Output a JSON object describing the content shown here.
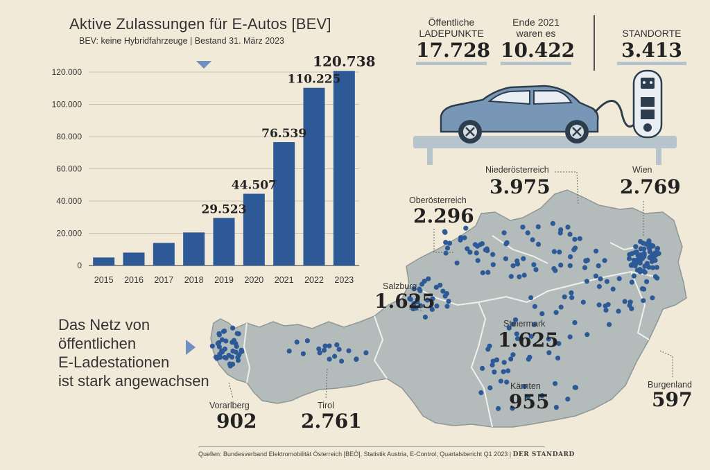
{
  "title": "Aktive Zulassungen für E-Autos [BEV]",
  "subtitle": "BEV: keine Hybridfahrzeuge | Bestand 31. März 2023",
  "chart_data": {
    "type": "bar",
    "categories": [
      "2015",
      "2016",
      "2017",
      "2018",
      "2019",
      "2020",
      "2021",
      "2022",
      "2023"
    ],
    "values": [
      5000,
      8000,
      14000,
      20500,
      29523,
      44507,
      76539,
      110225,
      120738
    ],
    "data_labels": [
      "",
      "",
      "",
      "",
      "29.523",
      "44.507",
      "76.539",
      "110.225",
      "120.738"
    ],
    "yticks": [
      0,
      20000,
      40000,
      60000,
      80000,
      100000,
      120000
    ],
    "ytick_labels": [
      "0",
      "20.000",
      "40.000",
      "60.000",
      "80.000",
      "100.000",
      "120.000"
    ],
    "ylim": [
      0,
      120000
    ],
    "bar_color": "#2d5a96",
    "marker_color": "#6e8fbf"
  },
  "stats": [
    {
      "label_line1": "Öffentliche",
      "label_line2": "LADEPUNKTE",
      "value": "17.728"
    },
    {
      "label_line1": "Ende 2021",
      "label_line2": "waren es",
      "value": "10.422"
    },
    {
      "label_line1": "STANDORTE",
      "label_line2": "",
      "value": "3.413"
    }
  ],
  "intro_lines": [
    "Das Netz von",
    "öffentlichen",
    "E-Ladestationen",
    "ist stark angewachsen"
  ],
  "regions": [
    {
      "name": "Niederösterreich",
      "value": "3.975"
    },
    {
      "name": "Wien",
      "value": "2.769"
    },
    {
      "name": "Oberösterreich",
      "value": "2.296"
    },
    {
      "name": "Salzburg",
      "value": "1.625"
    },
    {
      "name": "Steiermark",
      "value": "1.625"
    },
    {
      "name": "Kärnten",
      "value": "955"
    },
    {
      "name": "Burgenland",
      "value": "597"
    },
    {
      "name": "Vorarlberg",
      "value": "902"
    },
    {
      "name": "Tirol",
      "value": "2.761"
    }
  ],
  "colors": {
    "background": "#f2ead9",
    "map_fill": "#b4bcbb",
    "dot": "#2d5a96",
    "car": "#7896b6"
  },
  "footer": {
    "sources": "Quellen: Bundesverband Elektromobilität Österreich [BEÖ], Statistik Austria, E-Control, Quartalsbericht Q1 2023 |",
    "brand": "DER STANDARD"
  }
}
